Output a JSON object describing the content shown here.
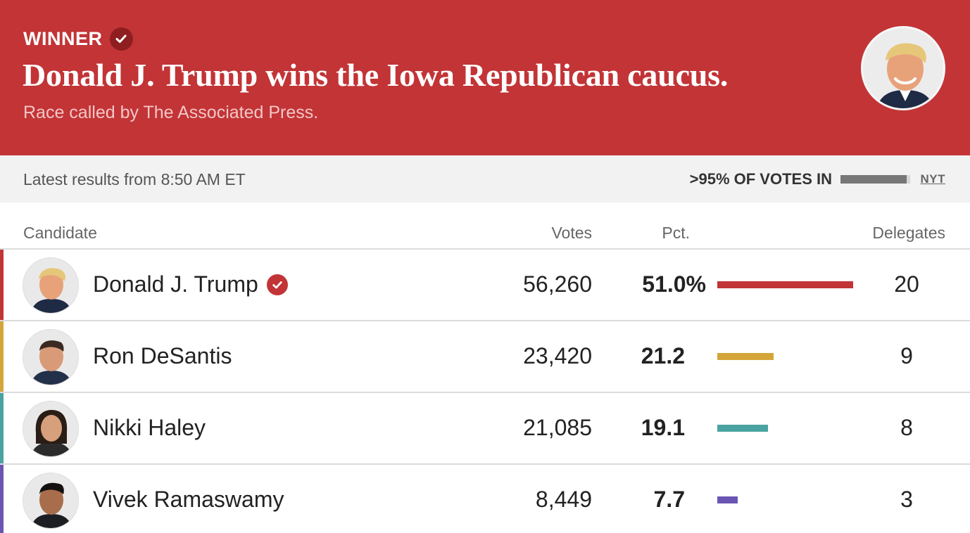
{
  "banner": {
    "winner_label": "WINNER",
    "headline": "Donald J. Trump wins the Iowa Republican caucus.",
    "subhead": "Race called by The Associated Press.",
    "colors": {
      "background": "#c23436"
    }
  },
  "status": {
    "latest": "Latest results from 8:50 AM ET",
    "votes_in": ">95% OF VOTES IN",
    "reporting_fraction": 0.95,
    "source": "NYT"
  },
  "table": {
    "headers": {
      "candidate": "Candidate",
      "votes": "Votes",
      "pct": "Pct.",
      "delegates": "Delegates"
    },
    "rows": [
      {
        "name": "Donald J. Trump",
        "votes": "56,260",
        "pct": "51.0%",
        "pct_value": 51.0,
        "delegates": "20",
        "color": "#c23436",
        "winner": true
      },
      {
        "name": "Ron DeSantis",
        "votes": "23,420",
        "pct": "21.2",
        "pct_value": 21.2,
        "delegates": "9",
        "color": "#d4a63a",
        "winner": false
      },
      {
        "name": "Nikki Haley",
        "votes": "21,085",
        "pct": "19.1",
        "pct_value": 19.1,
        "delegates": "8",
        "color": "#4aa3a0",
        "winner": false
      },
      {
        "name": "Vivek Ramaswamy",
        "votes": "8,449",
        "pct": "7.7",
        "pct_value": 7.7,
        "delegates": "3",
        "color": "#6a55b3",
        "winner": false
      }
    ]
  }
}
